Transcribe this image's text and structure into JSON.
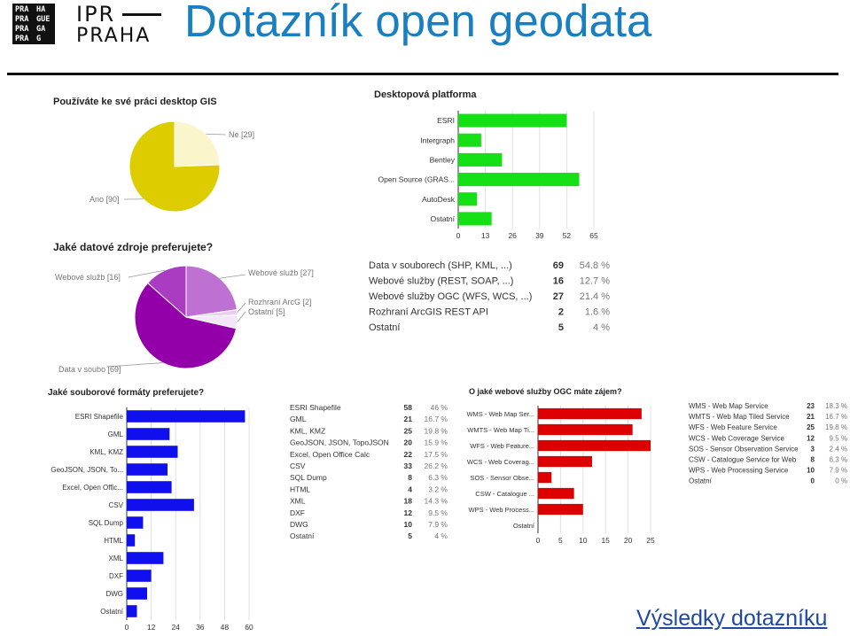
{
  "header": {
    "logo_lines": [
      [
        "PRA",
        "HA"
      ],
      [
        "PRA",
        "GUE"
      ],
      [
        "PRA",
        "GA"
      ],
      [
        "PRA",
        "G"
      ]
    ],
    "ipr_line1": "IPR",
    "ipr_line2": "PRAHA",
    "title": "Dotazník open geodata"
  },
  "footer": {
    "link_text": "Výsledky dotazníku"
  },
  "chart_data": [
    {
      "type": "pie",
      "title": "Používáte ke své práci desktop GIS",
      "slices": [
        {
          "label": "Ne [29]",
          "value": 29,
          "color": "#fbf5cc"
        },
        {
          "label": "Ano [90]",
          "value": 90,
          "color": "#dccc00"
        }
      ]
    },
    {
      "type": "bar",
      "orientation": "horizontal",
      "title": "Desktopová platforma",
      "categories": [
        "ESRI",
        "Intergraph",
        "Bentley",
        "Open Source (GRAS...",
        "AutoDesk",
        "Ostatní"
      ],
      "values": [
        52,
        11,
        21,
        58,
        9,
        16
      ],
      "ticks": [
        "0",
        "13",
        "26",
        "39",
        "52",
        "65"
      ],
      "xlim": [
        0,
        65
      ],
      "color": "#15e015"
    },
    {
      "type": "pie",
      "title": "Jaké datové zdroje preferujete?",
      "slices": [
        {
          "label": "Webové služb [27]",
          "value": 27,
          "color": "#bf70d3"
        },
        {
          "label": "Rozhraní ArcG [2]",
          "value": 2,
          "color": "#e8d0ee"
        },
        {
          "label": "Ostatní [5]",
          "value": 5,
          "color": "#f3e6f6"
        },
        {
          "label": "Data v soubo [69]",
          "value": 69,
          "color": "#9300aa"
        },
        {
          "label": "Webové služb [16]",
          "value": 16,
          "color": "#aa3cc2"
        }
      ]
    },
    {
      "type": "table",
      "rows": [
        {
          "label": "Data v souborech (SHP, KML, ...)",
          "count": "69",
          "pct": "54.8 %"
        },
        {
          "label": "Webové služby (REST, SOAP, ...)",
          "count": "16",
          "pct": "12.7 %"
        },
        {
          "label": "Webové služby OGC (WFS, WCS, ...)",
          "count": "27",
          "pct": "21.4 %"
        },
        {
          "label": "Rozhraní ArcGIS REST API",
          "count": "2",
          "pct": "1.6 %"
        },
        {
          "label": "Ostatní",
          "count": "5",
          "pct": "4 %"
        }
      ]
    },
    {
      "type": "bar",
      "orientation": "horizontal",
      "title": "Jaké souborové formáty preferujete?",
      "categories": [
        "ESRI Shapefile",
        "GML",
        "KML, KMZ",
        "GeoJSON, JSON, To...",
        "Excel, Open Offic...",
        "CSV",
        "SQL Dump",
        "HTML",
        "XML",
        "DXF",
        "DWG",
        "Ostatní"
      ],
      "values": [
        58,
        21,
        25,
        20,
        22,
        33,
        8,
        4,
        18,
        12,
        10,
        5
      ],
      "ticks": [
        "0",
        "12",
        "24",
        "36",
        "48",
        "60"
      ],
      "xlim": [
        0,
        60
      ],
      "color": "#1010ee"
    },
    {
      "type": "table",
      "rows": [
        {
          "label": "ESRI Shapefile",
          "count": "58",
          "pct": "46 %"
        },
        {
          "label": "GML",
          "count": "21",
          "pct": "16.7 %"
        },
        {
          "label": "KML, KMZ",
          "count": "25",
          "pct": "19.8 %"
        },
        {
          "label": "GeoJSON, JSON, TopoJSON",
          "count": "20",
          "pct": "15.9 %"
        },
        {
          "label": "Excel, Open Office Calc",
          "count": "22",
          "pct": "17.5 %"
        },
        {
          "label": "CSV",
          "count": "33",
          "pct": "26.2 %"
        },
        {
          "label": "SQL Dump",
          "count": "8",
          "pct": "6.3 %"
        },
        {
          "label": "HTML",
          "count": "4",
          "pct": "3.2 %"
        },
        {
          "label": "XML",
          "count": "18",
          "pct": "14.3 %"
        },
        {
          "label": "DXF",
          "count": "12",
          "pct": "9.5 %"
        },
        {
          "label": "DWG",
          "count": "10",
          "pct": "7.9 %"
        },
        {
          "label": "Ostatní",
          "count": "5",
          "pct": "4 %"
        }
      ]
    },
    {
      "type": "bar",
      "orientation": "horizontal",
      "title": "O jaké webové služby OGC máte zájem?",
      "categories": [
        "WMS - Web Map Ser...",
        "WMTS - Web Map Ti...",
        "WFS - Web Feature...",
        "WCS - Web Coverag...",
        "SOS - Sensor Obse...",
        "CSW - Catalogue ...",
        "WPS - Web Process...",
        "Ostatní"
      ],
      "values": [
        23,
        21,
        25,
        12,
        3,
        8,
        10,
        0
      ],
      "ticks": [
        "0",
        "5",
        "10",
        "15",
        "20",
        "25"
      ],
      "xlim": [
        0,
        25
      ],
      "color": "#dd0000"
    },
    {
      "type": "table",
      "rows": [
        {
          "label": "WMS - Web Map Service",
          "count": "23",
          "pct": "18.3 %"
        },
        {
          "label": "WMTS - Web Map Tiled Service",
          "count": "21",
          "pct": "16.7 %"
        },
        {
          "label": "WFS - Web Feature Service",
          "count": "25",
          "pct": "19.8 %"
        },
        {
          "label": "WCS - Web Coverage Service",
          "count": "12",
          "pct": "9.5 %"
        },
        {
          "label": "SOS - Sensor Observation Service",
          "count": "3",
          "pct": "2.4 %"
        },
        {
          "label": "CSW - Catalogue Service for Web",
          "count": "8",
          "pct": "6.3 %"
        },
        {
          "label": "WPS - Web Processing Service",
          "count": "10",
          "pct": "7.9 %"
        },
        {
          "label": "Ostatní",
          "count": "0",
          "pct": "0 %"
        }
      ]
    }
  ]
}
